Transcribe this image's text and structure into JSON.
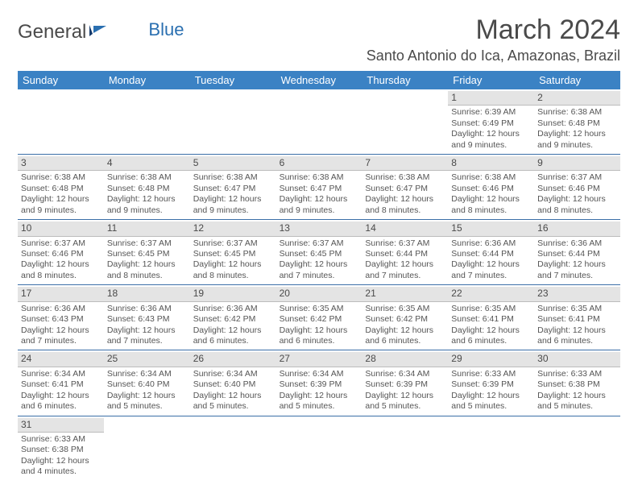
{
  "logo": {
    "general": "General",
    "blue": "Blue"
  },
  "title": "March 2024",
  "location": "Santo Antonio do Ica, Amazonas, Brazil",
  "colors": {
    "header_bg": "#3b82c4",
    "week_border": "#3b6fa8",
    "daynum_bg": "#e4e4e4",
    "daynum_border": "#bcbcbc",
    "text": "#4a4a4a"
  },
  "dayNames": [
    "Sunday",
    "Monday",
    "Tuesday",
    "Wednesday",
    "Thursday",
    "Friday",
    "Saturday"
  ],
  "weeks": [
    [
      null,
      null,
      null,
      null,
      null,
      {
        "n": "1",
        "sr": "Sunrise: 6:39 AM",
        "ss": "Sunset: 6:49 PM",
        "dl1": "Daylight: 12 hours",
        "dl2": "and 9 minutes."
      },
      {
        "n": "2",
        "sr": "Sunrise: 6:38 AM",
        "ss": "Sunset: 6:48 PM",
        "dl1": "Daylight: 12 hours",
        "dl2": "and 9 minutes."
      }
    ],
    [
      {
        "n": "3",
        "sr": "Sunrise: 6:38 AM",
        "ss": "Sunset: 6:48 PM",
        "dl1": "Daylight: 12 hours",
        "dl2": "and 9 minutes."
      },
      {
        "n": "4",
        "sr": "Sunrise: 6:38 AM",
        "ss": "Sunset: 6:48 PM",
        "dl1": "Daylight: 12 hours",
        "dl2": "and 9 minutes."
      },
      {
        "n": "5",
        "sr": "Sunrise: 6:38 AM",
        "ss": "Sunset: 6:47 PM",
        "dl1": "Daylight: 12 hours",
        "dl2": "and 9 minutes."
      },
      {
        "n": "6",
        "sr": "Sunrise: 6:38 AM",
        "ss": "Sunset: 6:47 PM",
        "dl1": "Daylight: 12 hours",
        "dl2": "and 9 minutes."
      },
      {
        "n": "7",
        "sr": "Sunrise: 6:38 AM",
        "ss": "Sunset: 6:47 PM",
        "dl1": "Daylight: 12 hours",
        "dl2": "and 8 minutes."
      },
      {
        "n": "8",
        "sr": "Sunrise: 6:38 AM",
        "ss": "Sunset: 6:46 PM",
        "dl1": "Daylight: 12 hours",
        "dl2": "and 8 minutes."
      },
      {
        "n": "9",
        "sr": "Sunrise: 6:37 AM",
        "ss": "Sunset: 6:46 PM",
        "dl1": "Daylight: 12 hours",
        "dl2": "and 8 minutes."
      }
    ],
    [
      {
        "n": "10",
        "sr": "Sunrise: 6:37 AM",
        "ss": "Sunset: 6:46 PM",
        "dl1": "Daylight: 12 hours",
        "dl2": "and 8 minutes."
      },
      {
        "n": "11",
        "sr": "Sunrise: 6:37 AM",
        "ss": "Sunset: 6:45 PM",
        "dl1": "Daylight: 12 hours",
        "dl2": "and 8 minutes."
      },
      {
        "n": "12",
        "sr": "Sunrise: 6:37 AM",
        "ss": "Sunset: 6:45 PM",
        "dl1": "Daylight: 12 hours",
        "dl2": "and 8 minutes."
      },
      {
        "n": "13",
        "sr": "Sunrise: 6:37 AM",
        "ss": "Sunset: 6:45 PM",
        "dl1": "Daylight: 12 hours",
        "dl2": "and 7 minutes."
      },
      {
        "n": "14",
        "sr": "Sunrise: 6:37 AM",
        "ss": "Sunset: 6:44 PM",
        "dl1": "Daylight: 12 hours",
        "dl2": "and 7 minutes."
      },
      {
        "n": "15",
        "sr": "Sunrise: 6:36 AM",
        "ss": "Sunset: 6:44 PM",
        "dl1": "Daylight: 12 hours",
        "dl2": "and 7 minutes."
      },
      {
        "n": "16",
        "sr": "Sunrise: 6:36 AM",
        "ss": "Sunset: 6:44 PM",
        "dl1": "Daylight: 12 hours",
        "dl2": "and 7 minutes."
      }
    ],
    [
      {
        "n": "17",
        "sr": "Sunrise: 6:36 AM",
        "ss": "Sunset: 6:43 PM",
        "dl1": "Daylight: 12 hours",
        "dl2": "and 7 minutes."
      },
      {
        "n": "18",
        "sr": "Sunrise: 6:36 AM",
        "ss": "Sunset: 6:43 PM",
        "dl1": "Daylight: 12 hours",
        "dl2": "and 7 minutes."
      },
      {
        "n": "19",
        "sr": "Sunrise: 6:36 AM",
        "ss": "Sunset: 6:42 PM",
        "dl1": "Daylight: 12 hours",
        "dl2": "and 6 minutes."
      },
      {
        "n": "20",
        "sr": "Sunrise: 6:35 AM",
        "ss": "Sunset: 6:42 PM",
        "dl1": "Daylight: 12 hours",
        "dl2": "and 6 minutes."
      },
      {
        "n": "21",
        "sr": "Sunrise: 6:35 AM",
        "ss": "Sunset: 6:42 PM",
        "dl1": "Daylight: 12 hours",
        "dl2": "and 6 minutes."
      },
      {
        "n": "22",
        "sr": "Sunrise: 6:35 AM",
        "ss": "Sunset: 6:41 PM",
        "dl1": "Daylight: 12 hours",
        "dl2": "and 6 minutes."
      },
      {
        "n": "23",
        "sr": "Sunrise: 6:35 AM",
        "ss": "Sunset: 6:41 PM",
        "dl1": "Daylight: 12 hours",
        "dl2": "and 6 minutes."
      }
    ],
    [
      {
        "n": "24",
        "sr": "Sunrise: 6:34 AM",
        "ss": "Sunset: 6:41 PM",
        "dl1": "Daylight: 12 hours",
        "dl2": "and 6 minutes."
      },
      {
        "n": "25",
        "sr": "Sunrise: 6:34 AM",
        "ss": "Sunset: 6:40 PM",
        "dl1": "Daylight: 12 hours",
        "dl2": "and 5 minutes."
      },
      {
        "n": "26",
        "sr": "Sunrise: 6:34 AM",
        "ss": "Sunset: 6:40 PM",
        "dl1": "Daylight: 12 hours",
        "dl2": "and 5 minutes."
      },
      {
        "n": "27",
        "sr": "Sunrise: 6:34 AM",
        "ss": "Sunset: 6:39 PM",
        "dl1": "Daylight: 12 hours",
        "dl2": "and 5 minutes."
      },
      {
        "n": "28",
        "sr": "Sunrise: 6:34 AM",
        "ss": "Sunset: 6:39 PM",
        "dl1": "Daylight: 12 hours",
        "dl2": "and 5 minutes."
      },
      {
        "n": "29",
        "sr": "Sunrise: 6:33 AM",
        "ss": "Sunset: 6:39 PM",
        "dl1": "Daylight: 12 hours",
        "dl2": "and 5 minutes."
      },
      {
        "n": "30",
        "sr": "Sunrise: 6:33 AM",
        "ss": "Sunset: 6:38 PM",
        "dl1": "Daylight: 12 hours",
        "dl2": "and 5 minutes."
      }
    ],
    [
      {
        "n": "31",
        "sr": "Sunrise: 6:33 AM",
        "ss": "Sunset: 6:38 PM",
        "dl1": "Daylight: 12 hours",
        "dl2": "and 4 minutes."
      },
      null,
      null,
      null,
      null,
      null,
      null
    ]
  ]
}
